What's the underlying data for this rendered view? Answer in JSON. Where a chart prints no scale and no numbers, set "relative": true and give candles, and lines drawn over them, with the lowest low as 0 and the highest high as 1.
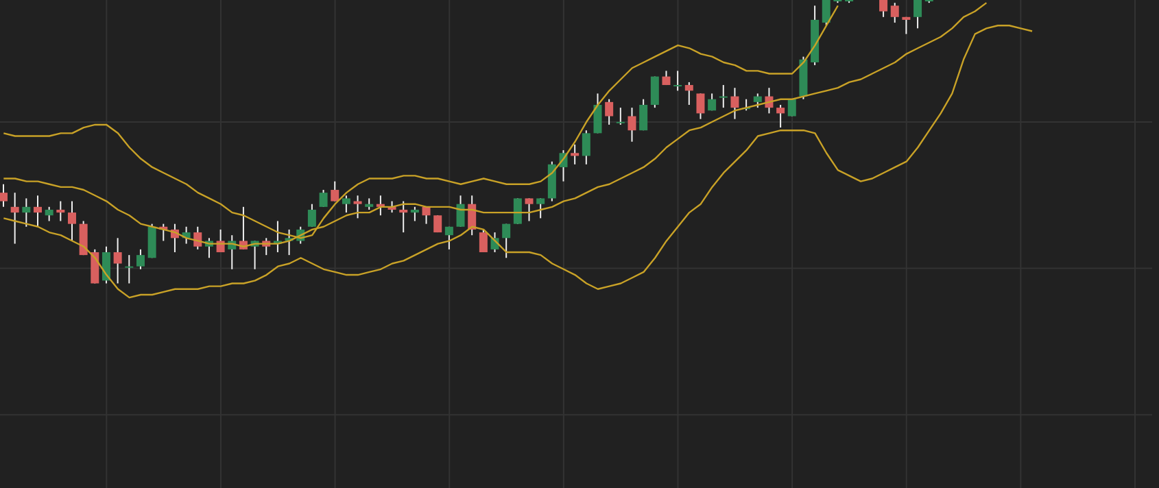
{
  "chart_data": {
    "type": "candlestick",
    "relative": true,
    "grid": true,
    "categories": [
      null,
      null,
      null,
      null,
      null,
      null,
      null,
      null,
      null,
      null,
      null,
      null,
      null,
      null,
      null,
      null,
      null,
      null,
      null,
      null,
      null,
      null,
      null,
      null,
      null,
      null,
      null,
      null,
      null,
      null,
      null,
      null,
      null,
      null,
      null,
      null,
      null,
      null,
      null,
      null,
      null,
      null,
      null,
      null,
      null,
      null,
      null,
      null,
      null,
      null,
      null,
      null,
      null,
      null,
      null,
      null,
      null,
      null,
      null,
      null,
      null,
      null,
      null,
      null,
      null,
      null,
      null,
      null,
      null,
      null,
      null,
      null,
      null,
      null,
      null,
      null,
      null,
      null,
      null,
      null,
      null,
      null,
      null,
      null,
      null,
      null,
      null,
      null,
      null,
      null,
      null,
      null,
      null,
      null,
      null,
      null,
      null,
      null,
      null,
      null,
      null
    ],
    "series": [
      {
        "ohlc": [
          [
            0.32,
            0.35,
            0.27,
            0.29
          ],
          [
            0.27,
            0.32,
            0.14,
            0.25
          ],
          [
            0.25,
            0.3,
            0.2,
            0.27
          ],
          [
            0.27,
            0.31,
            0.2,
            0.25
          ],
          [
            0.24,
            0.27,
            0.22,
            0.26
          ],
          [
            0.26,
            0.29,
            0.22,
            0.25
          ],
          [
            0.25,
            0.29,
            0.15,
            0.21
          ],
          [
            0.21,
            0.22,
            0.1,
            0.1
          ],
          [
            0.11,
            0.12,
            0,
            0
          ],
          [
            0.01,
            0.13,
            0,
            0.11
          ],
          [
            0.11,
            0.16,
            0,
            0.07
          ],
          [
            0.06,
            0.1,
            0,
            0.06
          ],
          [
            0.06,
            0.12,
            0.05,
            0.1
          ],
          [
            0.09,
            0.21,
            0.09,
            0.2
          ],
          [
            0.2,
            0.21,
            0.15,
            0.19
          ],
          [
            0.19,
            0.21,
            0.11,
            0.16
          ],
          [
            0.16,
            0.2,
            0.14,
            0.18
          ],
          [
            0.18,
            0.2,
            0.12,
            0.13
          ],
          [
            0.13,
            0.16,
            0.09,
            0.15
          ],
          [
            0.15,
            0.19,
            0.11,
            0.11
          ],
          [
            0.12,
            0.17,
            0.05,
            0.15
          ],
          [
            0.15,
            0.27,
            0.12,
            0.12
          ],
          [
            0.13,
            0.15,
            0.05,
            0.15
          ],
          [
            0.15,
            0.16,
            0.1,
            0.13
          ],
          [
            0.14,
            0.22,
            0.11,
            0.15
          ],
          [
            0.15,
            0.19,
            0.1,
            0.16
          ],
          [
            0.15,
            0.2,
            0.14,
            0.19
          ],
          [
            0.2,
            0.28,
            0.2,
            0.26
          ],
          [
            0.27,
            0.33,
            0.27,
            0.32
          ],
          [
            0.33,
            0.36,
            0.29,
            0.29
          ],
          [
            0.28,
            0.31,
            0.25,
            0.3
          ],
          [
            0.29,
            0.31,
            0.23,
            0.28
          ],
          [
            0.27,
            0.3,
            0.26,
            0.28
          ],
          [
            0.28,
            0.31,
            0.24,
            0.27
          ],
          [
            0.27,
            0.29,
            0.25,
            0.26
          ],
          [
            0.26,
            0.29,
            0.18,
            0.25
          ],
          [
            0.25,
            0.27,
            0.22,
            0.26
          ],
          [
            0.27,
            0.27,
            0.21,
            0.24
          ],
          [
            0.24,
            0.24,
            0.18,
            0.18
          ],
          [
            0.17,
            0.2,
            0.12,
            0.2
          ],
          [
            0.2,
            0.31,
            0.2,
            0.28
          ],
          [
            0.28,
            0.31,
            0.17,
            0.19
          ],
          [
            0.18,
            0.19,
            0.11,
            0.11
          ],
          [
            0.12,
            0.18,
            0.11,
            0.16
          ],
          [
            0.16,
            0.21,
            0.09,
            0.21
          ],
          [
            0.21,
            0.3,
            0.21,
            0.3
          ],
          [
            0.3,
            0.3,
            0.22,
            0.28
          ],
          [
            0.28,
            0.3,
            0.23,
            0.3
          ],
          [
            0.3,
            0.43,
            0.29,
            0.42
          ],
          [
            0.41,
            0.47,
            0.36,
            0.46
          ],
          [
            0.46,
            0.49,
            0.42,
            0.45
          ],
          [
            0.45,
            0.54,
            0.42,
            0.53
          ],
          [
            0.53,
            0.67,
            0.53,
            0.63
          ],
          [
            0.64,
            0.65,
            0.56,
            0.59
          ],
          [
            0.57,
            0.62,
            0.56,
            0.57
          ],
          [
            0.59,
            0.62,
            0.5,
            0.54
          ],
          [
            0.54,
            0.65,
            0.54,
            0.63
          ],
          [
            0.63,
            0.73,
            0.62,
            0.73
          ],
          [
            0.73,
            0.75,
            0.7,
            0.7
          ],
          [
            0.7,
            0.75,
            0.68,
            0.7
          ],
          [
            0.7,
            0.71,
            0.63,
            0.68
          ],
          [
            0.67,
            0.67,
            0.58,
            0.6
          ],
          [
            0.61,
            0.67,
            0.61,
            0.65
          ],
          [
            0.66,
            0.7,
            0.62,
            0.66
          ],
          [
            0.66,
            0.69,
            0.58,
            0.62
          ],
          [
            0.62,
            0.65,
            0.61,
            0.62
          ],
          [
            0.64,
            0.67,
            0.62,
            0.66
          ],
          [
            0.66,
            0.69,
            0.6,
            0.62
          ],
          [
            0.62,
            0.63,
            0.55,
            0.6
          ],
          [
            0.59,
            0.65,
            0.59,
            0.65
          ],
          [
            0.66,
            0.8,
            0.65,
            0.79
          ],
          [
            0.78,
            0.98,
            0.77,
            0.93
          ],
          [
            0.92,
            1,
            0.91,
            1
          ],
          [
            1,
            1,
            0.99,
            1
          ],
          [
            1,
            1,
            0.99,
            1
          ],
          null,
          null,
          [
            1,
            1,
            0.94,
            0.96
          ],
          [
            0.98,
            0.99,
            0.92,
            0.94
          ],
          [
            0.94,
            0.94,
            0.88,
            0.93
          ],
          [
            0.94,
            1,
            0.9,
            1
          ],
          [
            1,
            1,
            0.99,
            1
          ],
          null,
          null,
          null,
          null,
          null,
          null,
          null,
          null,
          null,
          null,
          null,
          null,
          null,
          null,
          null,
          null,
          null,
          null,
          null
        ]
      },
      {
        "type": "line",
        "color": "#c9a227",
        "values": [
          0.53,
          0.52,
          0.52,
          0.52,
          0.52,
          0.53,
          0.53,
          0.55,
          0.56,
          0.56,
          0.53,
          0.48,
          0.44,
          0.41,
          0.39,
          0.37,
          0.35,
          0.32,
          0.3,
          0.28,
          0.25,
          0.24,
          0.22,
          0.2,
          0.18,
          0.17,
          0.16,
          0.17,
          0.23,
          0.28,
          0.32,
          0.35,
          0.37,
          0.37,
          0.37,
          0.38,
          0.38,
          0.37,
          0.37,
          0.36,
          0.35,
          0.36,
          0.37,
          0.36,
          0.35,
          0.35,
          0.35,
          0.36,
          0.39,
          0.44,
          0.5,
          0.57,
          0.63,
          0.68,
          0.72,
          0.76,
          0.78,
          0.8,
          0.82,
          0.84,
          0.83,
          0.81,
          0.8,
          0.78,
          0.77,
          0.75,
          0.75,
          0.74,
          0.74,
          0.74,
          0.78,
          0.84,
          0.91,
          0.98,
          null,
          null,
          null,
          null,
          null,
          null,
          null,
          null,
          null,
          null,
          null,
          null,
          null,
          null,
          null,
          null,
          null,
          null,
          null,
          null,
          null,
          null,
          null,
          null,
          null,
          null,
          null
        ]
      },
      {
        "type": "line",
        "color": "#c9a227",
        "values": [
          0.37,
          0.37,
          0.36,
          0.36,
          0.35,
          0.34,
          0.34,
          0.33,
          0.31,
          0.29,
          0.26,
          0.24,
          0.21,
          0.2,
          0.19,
          0.18,
          0.16,
          0.15,
          0.14,
          0.14,
          0.14,
          0.13,
          0.14,
          0.14,
          0.14,
          0.15,
          0.17,
          0.19,
          0.2,
          0.22,
          0.24,
          0.25,
          0.25,
          0.27,
          0.27,
          0.28,
          0.28,
          0.27,
          0.27,
          0.27,
          0.26,
          0.26,
          0.25,
          0.25,
          0.25,
          0.25,
          0.25,
          0.26,
          0.27,
          0.29,
          0.3,
          0.32,
          0.34,
          0.35,
          0.37,
          0.39,
          0.41,
          0.44,
          0.48,
          0.51,
          0.54,
          0.55,
          0.57,
          0.59,
          0.61,
          0.62,
          0.63,
          0.64,
          0.65,
          0.65,
          0.66,
          0.67,
          0.68,
          0.69,
          0.71,
          0.72,
          0.74,
          0.76,
          0.78,
          0.81,
          0.83,
          0.85,
          0.87,
          0.9,
          0.94,
          0.96,
          0.99,
          null,
          null,
          null,
          null,
          null,
          null,
          null,
          null,
          null,
          null,
          null,
          null,
          null,
          null
        ]
      },
      {
        "type": "line",
        "color": "#c9a227",
        "values": [
          0.23,
          0.22,
          0.21,
          0.2,
          0.18,
          0.17,
          0.15,
          0.13,
          0.09,
          0.03,
          -0.02,
          -0.05,
          -0.04,
          -0.04,
          -0.03,
          -0.02,
          -0.02,
          -0.02,
          -0.01,
          -0.01,
          0.0,
          0.0,
          0.01,
          0.03,
          0.06,
          0.07,
          0.09,
          0.07,
          0.05,
          0.04,
          0.03,
          0.03,
          0.04,
          0.05,
          0.07,
          0.08,
          0.1,
          0.12,
          0.14,
          0.15,
          0.17,
          0.2,
          0.19,
          0.15,
          0.11,
          0.11,
          0.11,
          0.1,
          0.07,
          0.05,
          0.03,
          0.0,
          -0.02,
          -0.01,
          0.0,
          0.02,
          0.04,
          0.09,
          0.15,
          0.2,
          0.25,
          0.28,
          0.34,
          0.39,
          0.43,
          0.47,
          0.52,
          0.53,
          0.54,
          0.54,
          0.54,
          0.53,
          0.46,
          0.4,
          0.38,
          0.36,
          0.37,
          0.39,
          0.41,
          0.43,
          0.48,
          0.54,
          0.6,
          0.67,
          0.79,
          0.88,
          0.9,
          0.91,
          0.91,
          0.9,
          0.89,
          null,
          null,
          null,
          null,
          null,
          null,
          null,
          null,
          null,
          null
        ]
      }
    ]
  }
}
